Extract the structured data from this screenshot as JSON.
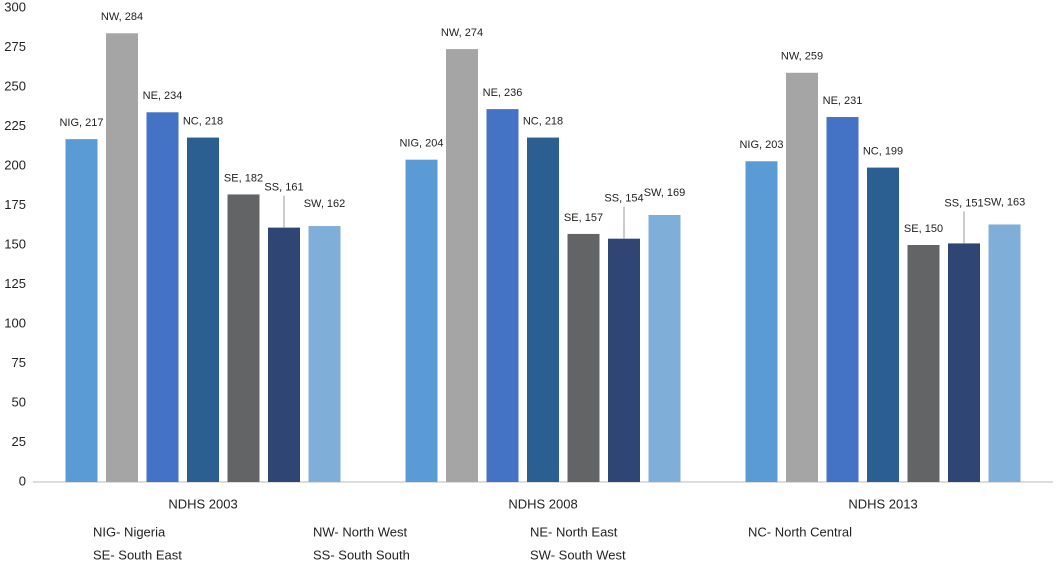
{
  "chart_data": {
    "type": "bar",
    "categories": [
      "NDHS 2003",
      "NDHS 2008",
      "NDHS 2013"
    ],
    "series": [
      {
        "name": "NIG- Nigeria",
        "color": "#5b9bd5",
        "values": [
          217,
          204,
          203
        ],
        "value_labels": [
          "NIG, 217",
          "NIG, 204",
          "NIG, 203"
        ]
      },
      {
        "name": "NW- North West",
        "color": "#a5a5a5",
        "values": [
          284,
          274,
          259
        ],
        "value_labels": [
          "NW, 284",
          "NW, 274",
          "NW, 259"
        ]
      },
      {
        "name": "NE- North East",
        "color": "#4472c4",
        "values": [
          234,
          236,
          231
        ],
        "value_labels": [
          "NE, 234",
          "NE, 236",
          "NE, 231"
        ]
      },
      {
        "name": "NC- North Central",
        "color": "#2c5f91",
        "values": [
          218,
          218,
          199
        ],
        "value_labels": [
          "NC, 218",
          "NC, 218",
          "NC, 199"
        ]
      },
      {
        "name": "SE- South East",
        "color": "#636466",
        "values": [
          182,
          157,
          150
        ],
        "value_labels": [
          "SE, 182",
          "SE, 157",
          "SE, 150"
        ]
      },
      {
        "name": "SS- South South",
        "color": "#2f4574",
        "values": [
          161,
          154,
          151
        ],
        "value_labels": [
          "SS, 161",
          "SS, 154",
          "SS, 151"
        ]
      },
      {
        "name": "SW- South West",
        "color": "#7faed9",
        "values": [
          162,
          169,
          163
        ],
        "value_labels": [
          "SW, 162",
          "SW, 169",
          "SW, 163"
        ]
      }
    ],
    "ylim": [
      0,
      300
    ],
    "yticks": [
      0,
      25,
      50,
      75,
      100,
      125,
      150,
      175,
      200,
      225,
      250,
      275,
      300
    ],
    "grid": false
  }
}
